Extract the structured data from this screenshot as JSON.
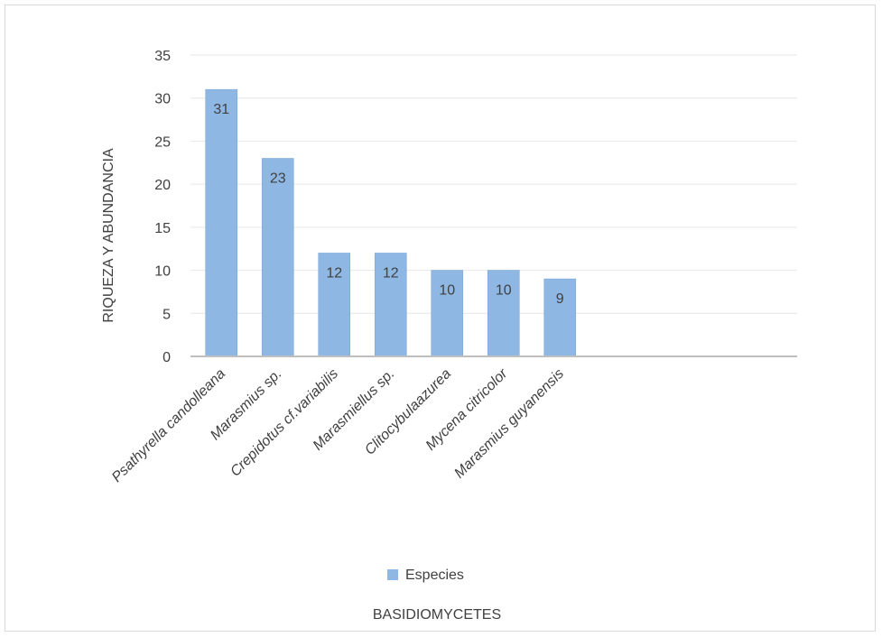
{
  "chart_data": {
    "type": "bar",
    "categories": [
      "Psathyrella  candolleana",
      "Marasmius sp.",
      "Crepidotus cf.variabilis",
      "Marasmiellus sp.",
      "Clitocybulaazurea",
      "Mycena citricolor",
      "Marasmius guyanensis"
    ],
    "series": [
      {
        "name": "Especies",
        "values": [
          31,
          23,
          12,
          12,
          10,
          10,
          9
        ]
      }
    ],
    "ylabel": "RIQUEZA Y ABUNDANCIA",
    "xlabel": "BASIDIOMYCETES",
    "ylim": [
      0,
      35
    ],
    "yticks": [
      0,
      5,
      10,
      15,
      20,
      25,
      30,
      35
    ],
    "grid": true,
    "legend": "bottom",
    "colors": {
      "bar": "#8fb7e3",
      "bar_edge": "#7aa6d6",
      "grid": "#e7e7e7",
      "axis": "#bfbfbf",
      "text": "#404040"
    }
  }
}
